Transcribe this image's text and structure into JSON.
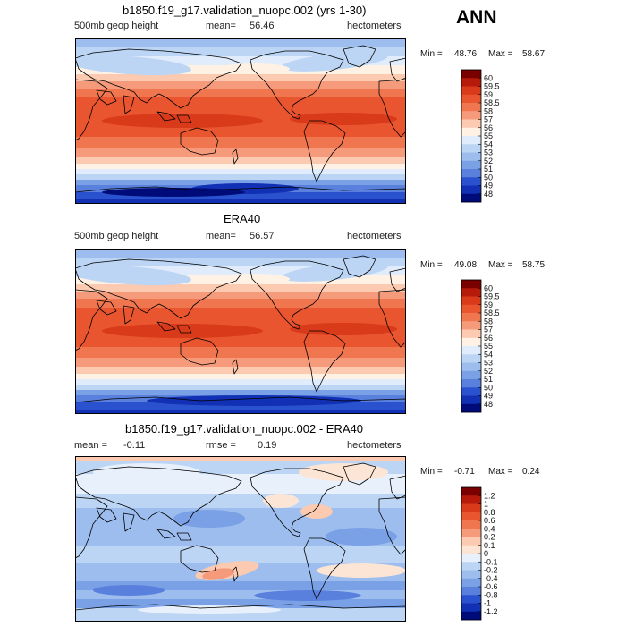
{
  "season": "ANN",
  "panels": [
    {
      "title": "b1850.f19_g17.validation_nuopc.002 (yrs 1-30)",
      "variable": "500mb geop height",
      "mean_label": "mean=",
      "mean_value": "56.46",
      "units": "hectometers",
      "min_label": "Min =",
      "min_value": "48.76",
      "max_label": "Max =",
      "max_value": "58.67",
      "colorbar_labels": [
        "60",
        "59.5",
        "59",
        "58.5",
        "58",
        "57",
        "56",
        "55",
        "54",
        "53",
        "52",
        "51",
        "50",
        "49",
        "48"
      ]
    },
    {
      "title": "ERA40",
      "variable": "500mb geop height",
      "mean_label": "mean=",
      "mean_value": "56.57",
      "units": "hectometers",
      "min_label": "Min =",
      "min_value": "49.08",
      "max_label": "Max =",
      "max_value": "58.75",
      "colorbar_labels": [
        "60",
        "59.5",
        "59",
        "58.5",
        "58",
        "57",
        "56",
        "55",
        "54",
        "53",
        "52",
        "51",
        "50",
        "49",
        "48"
      ]
    },
    {
      "title": "b1850.f19_g17.validation_nuopc.002 - ERA40",
      "mean_label": "mean =",
      "mean_value": "-0.11",
      "rmse_label": "rmse =",
      "rmse_value": "0.19",
      "units": "hectometers",
      "min_label": "Min =",
      "min_value": "-0.71",
      "max_label": "Max =",
      "max_value": "0.24",
      "colorbar_labels": [
        "1.2",
        "1",
        "0.8",
        "0.6",
        "0.4",
        "0.2",
        "0.1",
        "0",
        "-0.1",
        "-0.2",
        "-0.4",
        "-0.6",
        "-0.8",
        "-1",
        "-1.2"
      ]
    }
  ],
  "colors": {
    "abs_scale": [
      "#7a0000",
      "#b51a0a",
      "#d83a1a",
      "#e9552f",
      "#f07650",
      "#f59b7c",
      "#fbcab0",
      "#fff1e4",
      "#e0ecfb",
      "#bcd5f4",
      "#9dbdee",
      "#7aa0e6",
      "#5a80dd",
      "#2a52cf",
      "#1130b4",
      "#000b7a"
    ],
    "diff_scale": [
      "#7a0000",
      "#b51a0a",
      "#d83a1a",
      "#e9552f",
      "#f07650",
      "#f59b7c",
      "#fbcab0",
      "#fde5d6",
      "#e8f0fc",
      "#bcd5f4",
      "#9dbdee",
      "#7aa0e6",
      "#5a80dd",
      "#2a52cf",
      "#1130b4",
      "#000b7a"
    ],
    "coast": "#000000"
  }
}
